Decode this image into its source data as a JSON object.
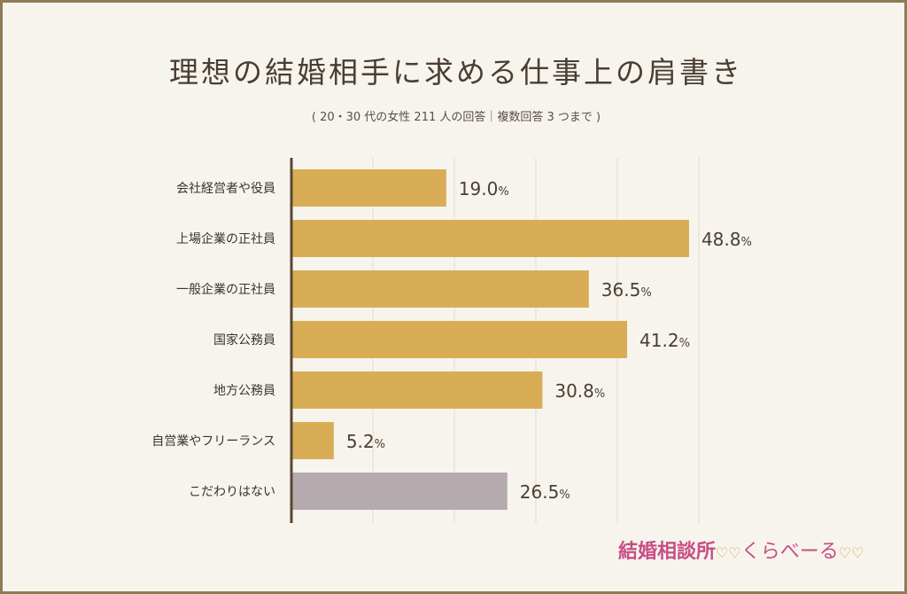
{
  "title": "理想の結婚相手に求める仕事上の肩書き",
  "subtitle": "( 20・30 代の女性 211 人の回答｜複数回答 3 つまで )",
  "logo": {
    "name": "結婚相談所",
    "sub": "くらべーる",
    "hearts_a": "♡♡",
    "hearts_b": "♡♡"
  },
  "colors": {
    "bar": "#d9ad55",
    "bar_other": "#b5aaae",
    "axis": "#5a4632",
    "grid": "#e2dccd"
  },
  "chart_data": {
    "type": "bar",
    "orientation": "horizontal",
    "categories": [
      "会社経営者や役員",
      "上場企業の正社員",
      "一般企業の正社員",
      "国家公務員",
      "地方公務員",
      "自営業やフリーランス",
      "こだわりはない"
    ],
    "values": [
      19.0,
      48.8,
      36.5,
      41.2,
      30.8,
      5.2,
      26.5
    ],
    "value_labels": [
      "19.0",
      "48.8",
      "36.5",
      "41.2",
      "30.8",
      "5.2",
      "26.5"
    ],
    "unit": "%",
    "xlim": [
      0,
      50
    ],
    "grid": true,
    "highlight_last": true
  }
}
